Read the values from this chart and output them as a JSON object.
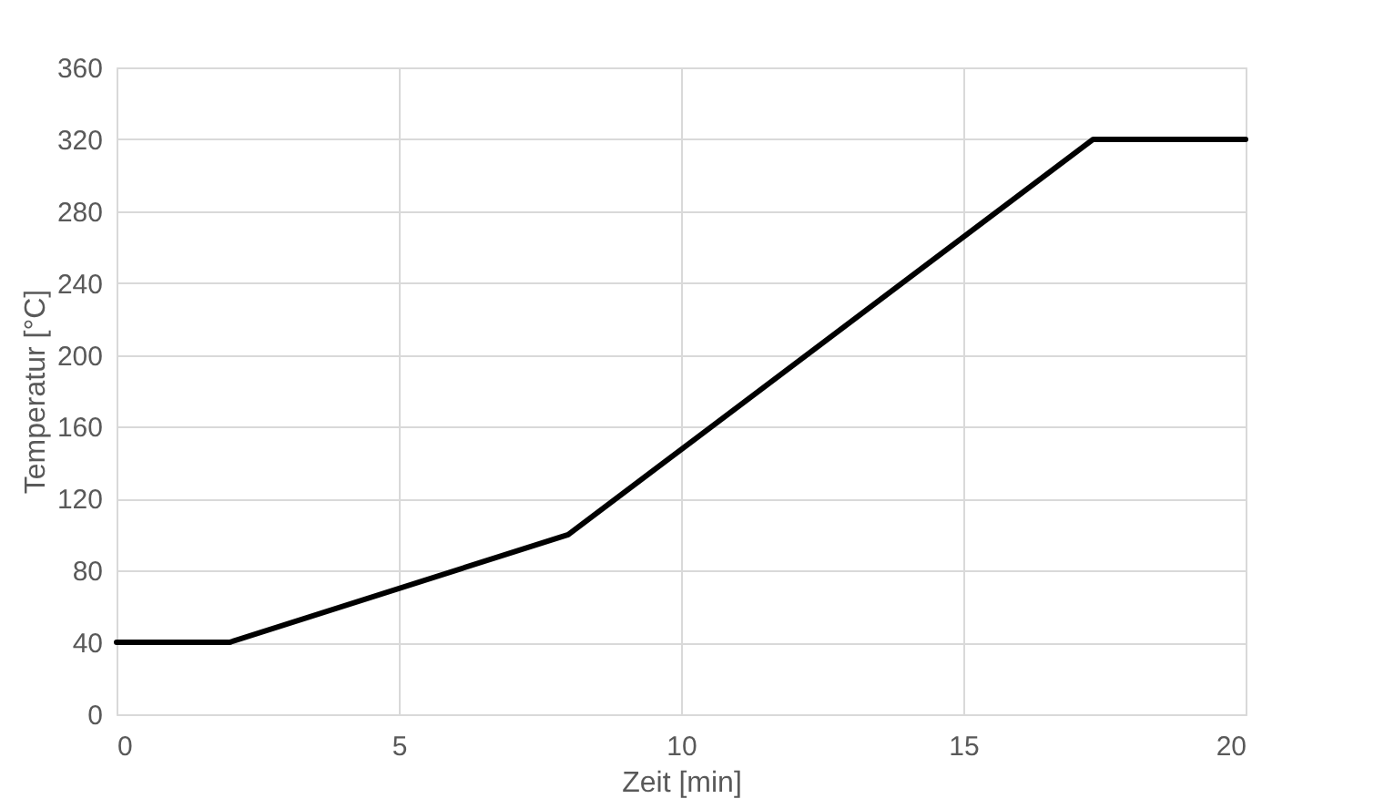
{
  "chart_data": {
    "type": "line",
    "xlabel": "Zeit [min]",
    "ylabel": "Temperatur [°C]",
    "x": [
      0,
      2,
      8,
      17.3,
      20
    ],
    "series": [
      {
        "color": "#000000",
        "values": [
          40,
          40,
          100,
          320,
          320
        ]
      }
    ],
    "xlim": [
      0,
      20
    ],
    "xticks": [
      0,
      5,
      10,
      15,
      20
    ],
    "ylim": [
      0,
      360
    ],
    "yticks": [
      0,
      40,
      80,
      120,
      160,
      200,
      240,
      280,
      320,
      360
    ],
    "grid": true,
    "marker": "none",
    "line_style": "solid"
  }
}
